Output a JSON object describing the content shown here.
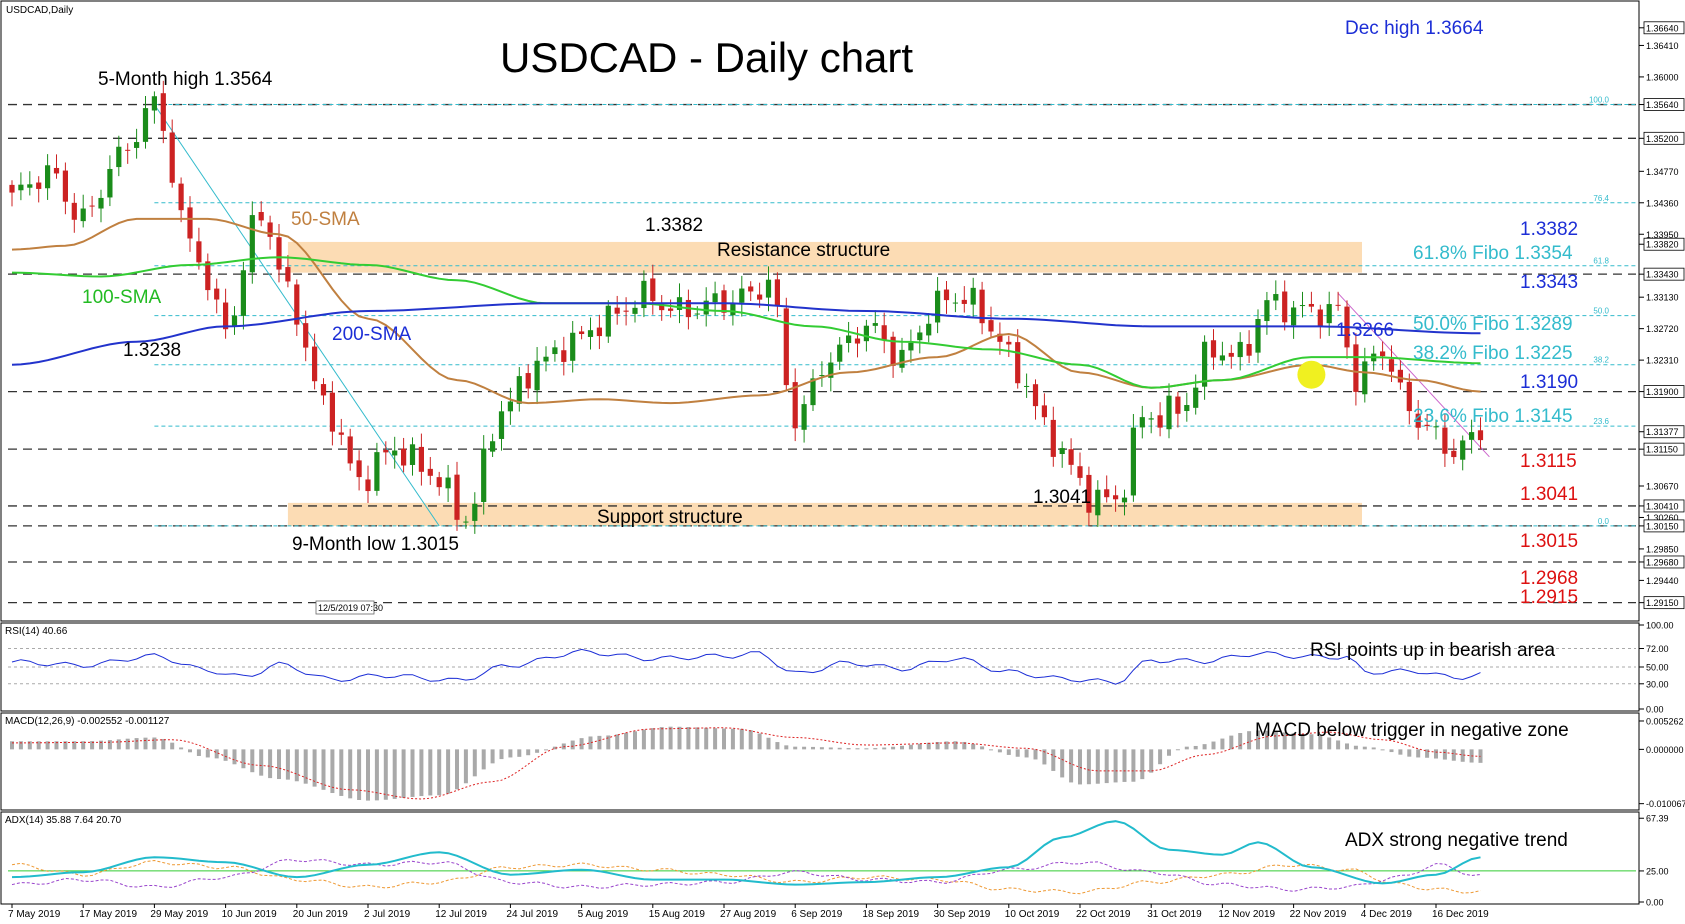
{
  "chart_data": {
    "type": "candlestick",
    "symbol_label": "USDCAD,Daily",
    "title": "USDCAD - Daily chart",
    "price_axis": {
      "ylim": [
        1.2895,
        1.3695
      ],
      "ticks": [
        "1.36640",
        "1.36410",
        "1.36000",
        "1.35640",
        "1.35200",
        "1.34770",
        "1.34360",
        "1.33950",
        "1.33820",
        "1.33430",
        "1.33130",
        "1.32720",
        "1.32310",
        "1.31900",
        "1.31377",
        "1.31150",
        "1.30670",
        "1.30410",
        "1.30260",
        "1.30150",
        "1.29850",
        "1.29680",
        "1.29440",
        "1.29150"
      ],
      "tick_values": [
        1.3664,
        1.3641,
        1.36,
        1.3564,
        1.352,
        1.3477,
        1.3436,
        1.3395,
        1.3382,
        1.3343,
        1.3313,
        1.3272,
        1.3231,
        1.319,
        1.31377,
        1.3115,
        1.3067,
        1.3041,
        1.3026,
        1.3015,
        1.2985,
        1.2968,
        1.2944,
        1.2915
      ],
      "boxed_ticks": [
        "1.36640",
        "1.35640",
        "1.35200",
        "1.33820",
        "1.33430",
        "1.31900",
        "1.31377",
        "1.31150",
        "1.30410",
        "1.30150",
        "1.29680",
        "1.29150"
      ]
    },
    "x_labels": [
      "7 May 2019",
      "17 May 2019",
      "29 May 2019",
      "10 Jun 2019",
      "20 Jun 2019",
      "2 Jul 2019",
      "12 Jul 2019",
      "24 Jul 2019",
      "5 Aug 2019",
      "15 Aug 2019",
      "27 Aug 2019",
      "6 Sep 2019",
      "18 Sep 2019",
      "30 Sep 2019",
      "10 Oct 2019",
      "22 Oct 2019",
      "31 Oct 2019",
      "12 Nov 2019",
      "22 Nov 2019",
      "4 Dec 2019",
      "16 Dec 2019"
    ],
    "x_label_idx": [
      0,
      8,
      16,
      24,
      32,
      40,
      48,
      56,
      64,
      72,
      80,
      88,
      96,
      104,
      112,
      120,
      128,
      136,
      144,
      152,
      160
    ],
    "n_bars": 166,
    "close_anchors": [
      [
        0,
        1.3445
      ],
      [
        4,
        1.3475
      ],
      [
        8,
        1.3415
      ],
      [
        12,
        1.3495
      ],
      [
        16,
        1.3564
      ],
      [
        20,
        1.3385
      ],
      [
        24,
        1.3275
      ],
      [
        28,
        1.3425
      ],
      [
        31,
        1.3318
      ],
      [
        35,
        1.3175
      ],
      [
        39,
        1.3075
      ],
      [
        43,
        1.3115
      ],
      [
        47,
        1.3085
      ],
      [
        51,
        1.3025
      ],
      [
        55,
        1.3165
      ],
      [
        59,
        1.3225
      ],
      [
        63,
        1.3255
      ],
      [
        67,
        1.3285
      ],
      [
        71,
        1.3315
      ],
      [
        75,
        1.3295
      ],
      [
        79,
        1.3305
      ],
      [
        83,
        1.3315
      ],
      [
        85,
        1.3335
      ],
      [
        88,
        1.3155
      ],
      [
        92,
        1.3235
      ],
      [
        96,
        1.3275
      ],
      [
        100,
        1.3235
      ],
      [
        104,
        1.3305
      ],
      [
        107,
        1.3315
      ],
      [
        110,
        1.3275
      ],
      [
        113,
        1.3215
      ],
      [
        117,
        1.3125
      ],
      [
        121,
        1.3055
      ],
      [
        124,
        1.3045
      ],
      [
        127,
        1.3155
      ],
      [
        131,
        1.3165
      ],
      [
        135,
        1.3245
      ],
      [
        138,
        1.3235
      ],
      [
        141,
        1.3305
      ],
      [
        145,
        1.3295
      ],
      [
        149,
        1.3295
      ],
      [
        151,
        1.3205
      ],
      [
        154,
        1.3245
      ],
      [
        157,
        1.3165
      ],
      [
        159,
        1.3145
      ],
      [
        161,
        1.3115
      ],
      [
        163,
        1.3118
      ],
      [
        165,
        1.3137
      ]
    ],
    "sma": [
      {
        "name": "50-SMA",
        "color": "#c08040",
        "anchors": [
          [
            0,
            1.3375
          ],
          [
            6,
            1.338
          ],
          [
            14,
            1.3415
          ],
          [
            22,
            1.3415
          ],
          [
            30,
            1.3395
          ],
          [
            40,
            1.3285
          ],
          [
            50,
            1.3205
          ],
          [
            58,
            1.3175
          ],
          [
            66,
            1.318
          ],
          [
            74,
            1.3175
          ],
          [
            84,
            1.3185
          ],
          [
            94,
            1.3215
          ],
          [
            104,
            1.3235
          ],
          [
            112,
            1.3265
          ],
          [
            120,
            1.3215
          ],
          [
            128,
            1.3195
          ],
          [
            136,
            1.3205
          ],
          [
            146,
            1.3225
          ],
          [
            152,
            1.3215
          ],
          [
            158,
            1.3205
          ],
          [
            165,
            1.319
          ]
        ]
      },
      {
        "name": "100-SMA",
        "color": "#33cc33",
        "anchors": [
          [
            0,
            1.3345
          ],
          [
            10,
            1.334
          ],
          [
            20,
            1.3355
          ],
          [
            30,
            1.3365
          ],
          [
            40,
            1.3355
          ],
          [
            50,
            1.3335
          ],
          [
            60,
            1.3305
          ],
          [
            70,
            1.3305
          ],
          [
            80,
            1.3295
          ],
          [
            90,
            1.3275
          ],
          [
            100,
            1.3255
          ],
          [
            110,
            1.3245
          ],
          [
            120,
            1.3225
          ],
          [
            128,
            1.3195
          ],
          [
            136,
            1.3205
          ],
          [
            146,
            1.3235
          ],
          [
            152,
            1.3235
          ],
          [
            165,
            1.3227
          ]
        ]
      },
      {
        "name": "200-SMA",
        "color": "#2233cc",
        "anchors": [
          [
            0,
            1.3225
          ],
          [
            14,
            1.3255
          ],
          [
            24,
            1.3275
          ],
          [
            40,
            1.3295
          ],
          [
            60,
            1.3305
          ],
          [
            80,
            1.3305
          ],
          [
            96,
            1.3295
          ],
          [
            112,
            1.3285
          ],
          [
            128,
            1.3275
          ],
          [
            146,
            1.3275
          ],
          [
            165,
            1.3266
          ]
        ]
      }
    ],
    "horizontal_levels": [
      1.3564,
      1.352,
      1.3343,
      1.319,
      1.3115,
      1.3041,
      1.3015,
      1.2968,
      1.2915
    ],
    "fibo_levels": [
      {
        "value": 1.3564,
        "label": "100.0"
      },
      {
        "value": 1.3436,
        "label": "76.4"
      },
      {
        "value": 1.3354,
        "label": "61.8"
      },
      {
        "value": 1.3289,
        "label": "50.0"
      },
      {
        "value": 1.3225,
        "label": "38.2"
      },
      {
        "value": 1.3145,
        "label": "23.6"
      },
      {
        "value": 1.3015,
        "label": "0.0"
      }
    ],
    "zones": [
      {
        "name": "Resistance structure",
        "from": 1.3345,
        "to": 1.3385
      },
      {
        "name": "Support structure",
        "from": 1.3015,
        "to": 1.3045
      }
    ],
    "annotations": {
      "dec_high": "Dec high 1.3664",
      "five_month_high": "5-Month high 1.3564",
      "high_1_3382": "1.3382",
      "resistance": "Resistance structure",
      "support": "Support structure",
      "sma50": "50-SMA",
      "sma100": "100-SMA",
      "sma200": "200-SMA",
      "low_1_3238": "1.3238",
      "nine_month_low": "9-Month low 1.3015",
      "low_1_3041": "1.3041",
      "lvl_1_3382": "1.3382",
      "fibo_61": "61.8% Fibo 1.3354",
      "lvl_1_3343": "1.3343",
      "fibo_50": "50.0% Fibo 1.3289",
      "lvl_1_3266": "1.3266",
      "fibo_38": "38.2% Fibo 1.3225",
      "lvl_1_3190": "1.3190",
      "fibo_23": "23.6% Fibo 1.3145",
      "lvl_1_3115": "1.3115",
      "lvl_1_3041": "1.3041",
      "lvl_1_3015": "1.3015",
      "lvl_1_2968": "1.2968",
      "lvl_1_2915": "1.2915",
      "timestamp_box": "12/5/2019 07:30"
    },
    "colors": {
      "up": "#1a8c1a",
      "down": "#cc2222",
      "fibo": "#33bbcc",
      "blue_text": "#1c2ed6",
      "red_text": "#dd1111",
      "zone_fill": "#fcdcb4",
      "trendline_down": "#cc66cc",
      "highlight": "#f0f020"
    },
    "rsi": {
      "label": "RSI(14) 40.66",
      "note": "RSI points up in bearish area",
      "ticks": [
        "100.00",
        "72.00",
        "50.00",
        "30.00",
        "0.00"
      ],
      "tick_values": [
        100,
        72,
        50,
        30,
        0
      ],
      "anchors": [
        [
          0,
          56
        ],
        [
          8,
          52
        ],
        [
          16,
          63
        ],
        [
          22,
          46
        ],
        [
          26,
          38
        ],
        [
          30,
          53
        ],
        [
          36,
          35
        ],
        [
          42,
          40
        ],
        [
          50,
          34
        ],
        [
          56,
          52
        ],
        [
          64,
          68
        ],
        [
          72,
          60
        ],
        [
          80,
          63
        ],
        [
          84,
          66
        ],
        [
          88,
          42
        ],
        [
          94,
          55
        ],
        [
          100,
          48
        ],
        [
          106,
          60
        ],
        [
          112,
          44
        ],
        [
          118,
          36
        ],
        [
          124,
          32
        ],
        [
          128,
          58
        ],
        [
          134,
          57
        ],
        [
          140,
          66
        ],
        [
          146,
          62
        ],
        [
          150,
          62
        ],
        [
          152,
          44
        ],
        [
          158,
          45
        ],
        [
          162,
          37
        ],
        [
          165,
          41
        ]
      ]
    },
    "macd": {
      "label": "MACD(12,26,9) -0.002552 -0.001127",
      "note": "MACD below trigger in negative zone",
      "ticks": [
        "0.005262",
        "0.000000",
        "-0.010067"
      ],
      "tick_values": [
        0.005262,
        0.0,
        -0.010067
      ],
      "hist_anchors": [
        [
          0,
          0.0015
        ],
        [
          8,
          0.0015
        ],
        [
          16,
          0.0022
        ],
        [
          22,
          -0.0015
        ],
        [
          30,
          -0.0055
        ],
        [
          40,
          -0.0095
        ],
        [
          48,
          -0.0085
        ],
        [
          56,
          -0.0015
        ],
        [
          66,
          0.0025
        ],
        [
          74,
          0.0042
        ],
        [
          82,
          0.0038
        ],
        [
          88,
          0.0005
        ],
        [
          96,
          0.0002
        ],
        [
          106,
          0.0015
        ],
        [
          114,
          -0.0015
        ],
        [
          120,
          -0.0065
        ],
        [
          126,
          -0.006
        ],
        [
          132,
          0.0005
        ],
        [
          140,
          0.0035
        ],
        [
          146,
          0.0028
        ],
        [
          152,
          0.0005
        ],
        [
          158,
          -0.0015
        ],
        [
          165,
          -0.0025
        ]
      ],
      "signal_anchors": [
        [
          0,
          0.0012
        ],
        [
          10,
          0.0013
        ],
        [
          18,
          0.0018
        ],
        [
          28,
          -0.003
        ],
        [
          38,
          -0.0075
        ],
        [
          46,
          -0.0092
        ],
        [
          54,
          -0.006
        ],
        [
          62,
          0.0005
        ],
        [
          72,
          0.0038
        ],
        [
          80,
          0.004
        ],
        [
          88,
          0.0022
        ],
        [
          96,
          0.0008
        ],
        [
          106,
          0.0012
        ],
        [
          114,
          0.0002
        ],
        [
          122,
          -0.004
        ],
        [
          128,
          -0.004
        ],
        [
          134,
          -0.001
        ],
        [
          142,
          0.0025
        ],
        [
          148,
          0.0032
        ],
        [
          154,
          0.0018
        ],
        [
          160,
          -0.0005
        ],
        [
          165,
          -0.0013
        ]
      ]
    },
    "adx": {
      "label": "ADX(14) 35.88 7.64 20.70",
      "note": "ADX strong negative trend",
      "ticks": [
        "67.39",
        "25.00",
        "0.00"
      ],
      "tick_values": [
        67.39,
        25,
        0
      ],
      "adx_anchors": [
        [
          0,
          20
        ],
        [
          8,
          24
        ],
        [
          16,
          36
        ],
        [
          24,
          32
        ],
        [
          32,
          20
        ],
        [
          40,
          30
        ],
        [
          48,
          40
        ],
        [
          56,
          22
        ],
        [
          64,
          26
        ],
        [
          72,
          18
        ],
        [
          80,
          18
        ],
        [
          88,
          14
        ],
        [
          96,
          16
        ],
        [
          104,
          20
        ],
        [
          112,
          28
        ],
        [
          118,
          52
        ],
        [
          124,
          65
        ],
        [
          130,
          42
        ],
        [
          136,
          38
        ],
        [
          140,
          48
        ],
        [
          146,
          28
        ],
        [
          154,
          15
        ],
        [
          160,
          22
        ],
        [
          165,
          36
        ]
      ],
      "pdi_anchors": [
        [
          0,
          30
        ],
        [
          8,
          22
        ],
        [
          16,
          32
        ],
        [
          24,
          28
        ],
        [
          32,
          18
        ],
        [
          40,
          12
        ],
        [
          48,
          16
        ],
        [
          56,
          28
        ],
        [
          64,
          30
        ],
        [
          72,
          26
        ],
        [
          80,
          22
        ],
        [
          88,
          16
        ],
        [
          96,
          20
        ],
        [
          104,
          18
        ],
        [
          112,
          10
        ],
        [
          120,
          8
        ],
        [
          128,
          16
        ],
        [
          136,
          22
        ],
        [
          144,
          30
        ],
        [
          150,
          26
        ],
        [
          156,
          14
        ],
        [
          160,
          10
        ],
        [
          165,
          8
        ]
      ],
      "mdi_anchors": [
        [
          0,
          14
        ],
        [
          8,
          18
        ],
        [
          16,
          12
        ],
        [
          24,
          20
        ],
        [
          32,
          34
        ],
        [
          40,
          30
        ],
        [
          48,
          32
        ],
        [
          56,
          16
        ],
        [
          64,
          12
        ],
        [
          72,
          14
        ],
        [
          80,
          16
        ],
        [
          88,
          24
        ],
        [
          96,
          18
        ],
        [
          104,
          16
        ],
        [
          112,
          26
        ],
        [
          120,
          32
        ],
        [
          128,
          24
        ],
        [
          136,
          14
        ],
        [
          144,
          10
        ],
        [
          150,
          12
        ],
        [
          156,
          20
        ],
        [
          160,
          30
        ],
        [
          165,
          21
        ]
      ],
      "adx_color": "#22bbcc",
      "pdi_color": "#ee9933",
      "mdi_color": "#9944cc"
    }
  }
}
